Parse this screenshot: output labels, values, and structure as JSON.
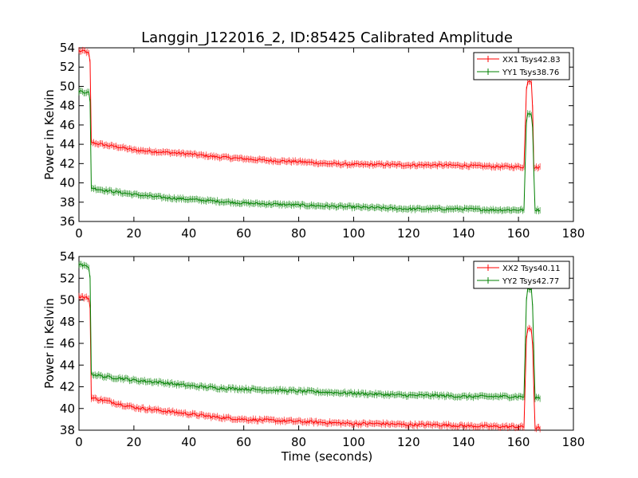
{
  "title": "Langgin_J122016_2, ID:85425 Calibrated Amplitude",
  "colors": {
    "red": "#ff0000",
    "green": "#008000"
  },
  "chart_data": [
    {
      "type": "line",
      "xlabel": "",
      "ylabel": "Power in Kelvin",
      "xlim": [
        0,
        180
      ],
      "ylim": [
        36,
        54
      ],
      "xticks": [
        "0",
        "20",
        "40",
        "60",
        "80",
        "100",
        "120",
        "140",
        "160",
        "180"
      ],
      "yticks": [
        "36",
        "38",
        "40",
        "42",
        "44",
        "46",
        "48",
        "50",
        "52",
        "54"
      ],
      "legend": "top-right",
      "series": [
        {
          "name": "XX1 Tsys42.83",
          "color": "#ff0000",
          "points": [
            [
              0,
              53.7
            ],
            [
              1,
              53.6
            ],
            [
              2,
              53.7
            ],
            [
              3,
              53.5
            ],
            [
              4,
              53.3
            ],
            [
              4.5,
              44.2
            ],
            [
              6,
              44.1
            ],
            [
              8,
              44.0
            ],
            [
              10,
              43.9
            ],
            [
              15,
              43.7
            ],
            [
              20,
              43.4
            ],
            [
              30,
              43.2
            ],
            [
              40,
              43.0
            ],
            [
              50,
              42.7
            ],
            [
              60,
              42.5
            ],
            [
              70,
              42.3
            ],
            [
              80,
              42.2
            ],
            [
              90,
              42.0
            ],
            [
              100,
              41.9
            ],
            [
              110,
              41.9
            ],
            [
              120,
              41.85
            ],
            [
              130,
              41.85
            ],
            [
              140,
              41.8
            ],
            [
              150,
              41.7
            ],
            [
              162,
              41.65
            ],
            [
              163,
              50.5
            ],
            [
              164,
              50.6
            ],
            [
              165,
              50.5
            ],
            [
              165.5,
              41.6
            ],
            [
              168,
              41.6
            ]
          ]
        },
        {
          "name": "YY1 Tsys38.76",
          "color": "#008000",
          "points": [
            [
              0,
              49.5
            ],
            [
              1,
              49.5
            ],
            [
              2,
              49.4
            ],
            [
              3,
              49.4
            ],
            [
              4,
              49.3
            ],
            [
              4.5,
              39.5
            ],
            [
              6,
              39.4
            ],
            [
              8,
              39.3
            ],
            [
              10,
              39.2
            ],
            [
              15,
              39.0
            ],
            [
              20,
              38.8
            ],
            [
              30,
              38.5
            ],
            [
              40,
              38.3
            ],
            [
              50,
              38.1
            ],
            [
              60,
              37.9
            ],
            [
              70,
              37.8
            ],
            [
              80,
              37.7
            ],
            [
              90,
              37.6
            ],
            [
              100,
              37.5
            ],
            [
              110,
              37.4
            ],
            [
              120,
              37.3
            ],
            [
              130,
              37.3
            ],
            [
              140,
              37.3
            ],
            [
              150,
              37.2
            ],
            [
              162,
              37.2
            ],
            [
              163,
              47.2
            ],
            [
              164,
              47.2
            ],
            [
              165,
              47.1
            ],
            [
              166,
              37.2
            ],
            [
              168,
              37.2
            ]
          ]
        }
      ]
    },
    {
      "type": "line",
      "xlabel": "Time (seconds)",
      "ylabel": "Power in Kelvin",
      "xlim": [
        0,
        180
      ],
      "ylim": [
        38,
        54
      ],
      "xticks": [
        "0",
        "20",
        "40",
        "60",
        "80",
        "100",
        "120",
        "140",
        "160",
        "180"
      ],
      "yticks": [
        "38",
        "40",
        "42",
        "44",
        "46",
        "48",
        "50",
        "52",
        "54"
      ],
      "legend": "top-right",
      "series": [
        {
          "name": "XX2 Tsys40.11",
          "color": "#ff0000",
          "points": [
            [
              0,
              50.3
            ],
            [
              1,
              50.3
            ],
            [
              2,
              50.2
            ],
            [
              3,
              50.2
            ],
            [
              4,
              50.1
            ],
            [
              4.5,
              41.0
            ],
            [
              6,
              40.9
            ],
            [
              8,
              40.8
            ],
            [
              10,
              40.7
            ],
            [
              15,
              40.4
            ],
            [
              20,
              40.1
            ],
            [
              30,
              39.8
            ],
            [
              40,
              39.5
            ],
            [
              50,
              39.2
            ],
            [
              60,
              39.0
            ],
            [
              70,
              38.9
            ],
            [
              80,
              38.8
            ],
            [
              90,
              38.7
            ],
            [
              100,
              38.6
            ],
            [
              110,
              38.6
            ],
            [
              120,
              38.5
            ],
            [
              130,
              38.5
            ],
            [
              140,
              38.4
            ],
            [
              150,
              38.35
            ],
            [
              162,
              38.3
            ],
            [
              163,
              47.3
            ],
            [
              164,
              47.3
            ],
            [
              165,
              47.2
            ],
            [
              166,
              38.2
            ],
            [
              168,
              38.2
            ]
          ]
        },
        {
          "name": "YY2 Tsys42.77",
          "color": "#008000",
          "points": [
            [
              0,
              53.2
            ],
            [
              1,
              53.2
            ],
            [
              2,
              53.1
            ],
            [
              3,
              53.1
            ],
            [
              4,
              53.0
            ],
            [
              4.5,
              43.2
            ],
            [
              6,
              43.1
            ],
            [
              8,
              43.0
            ],
            [
              10,
              42.9
            ],
            [
              15,
              42.8
            ],
            [
              20,
              42.6
            ],
            [
              30,
              42.4
            ],
            [
              40,
              42.1
            ],
            [
              50,
              41.9
            ],
            [
              60,
              41.8
            ],
            [
              70,
              41.7
            ],
            [
              80,
              41.6
            ],
            [
              90,
              41.5
            ],
            [
              100,
              41.4
            ],
            [
              110,
              41.3
            ],
            [
              120,
              41.2
            ],
            [
              130,
              41.2
            ],
            [
              140,
              41.1
            ],
            [
              150,
              41.1
            ],
            [
              162,
              41.1
            ],
            [
              163,
              51.0
            ],
            [
              164,
              51.0
            ],
            [
              165,
              50.9
            ],
            [
              166,
              41.0
            ],
            [
              168,
              41.0
            ]
          ]
        }
      ]
    }
  ]
}
